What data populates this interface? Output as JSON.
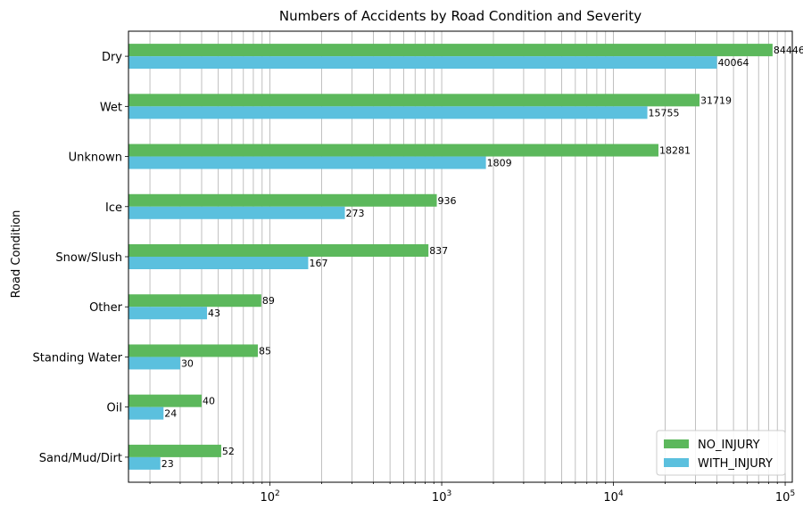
{
  "chart_data": {
    "type": "bar",
    "orientation": "horizontal",
    "title": "Numbers of Accidents by Road Condition and Severity",
    "xlabel": "",
    "ylabel": "Road Condition",
    "x_scale": "log",
    "xlim": [
      15,
      110000
    ],
    "x_ticks": [
      {
        "value": 100,
        "base": "10",
        "exp": "2"
      },
      {
        "value": 1000,
        "base": "10",
        "exp": "3"
      },
      {
        "value": 10000,
        "base": "10",
        "exp": "4"
      },
      {
        "value": 100000,
        "base": "10",
        "exp": "5"
      }
    ],
    "grid": "x-axis, major and minor",
    "legend_position": "bottom-right",
    "categories": [
      "Dry",
      "Wet",
      "Unknown",
      "Ice",
      "Snow/Slush",
      "Other",
      "Standing Water",
      "Oil",
      "Sand/Mud/Dirt"
    ],
    "series": [
      {
        "name": "NO_INJURY",
        "color": "#5cb85c",
        "values": [
          84446,
          31719,
          18281,
          936,
          837,
          89,
          85,
          40,
          52
        ]
      },
      {
        "name": "WITH_INJURY",
        "color": "#5bc0de",
        "values": [
          40064,
          15755,
          1809,
          273,
          167,
          43,
          30,
          24,
          23
        ]
      }
    ]
  }
}
